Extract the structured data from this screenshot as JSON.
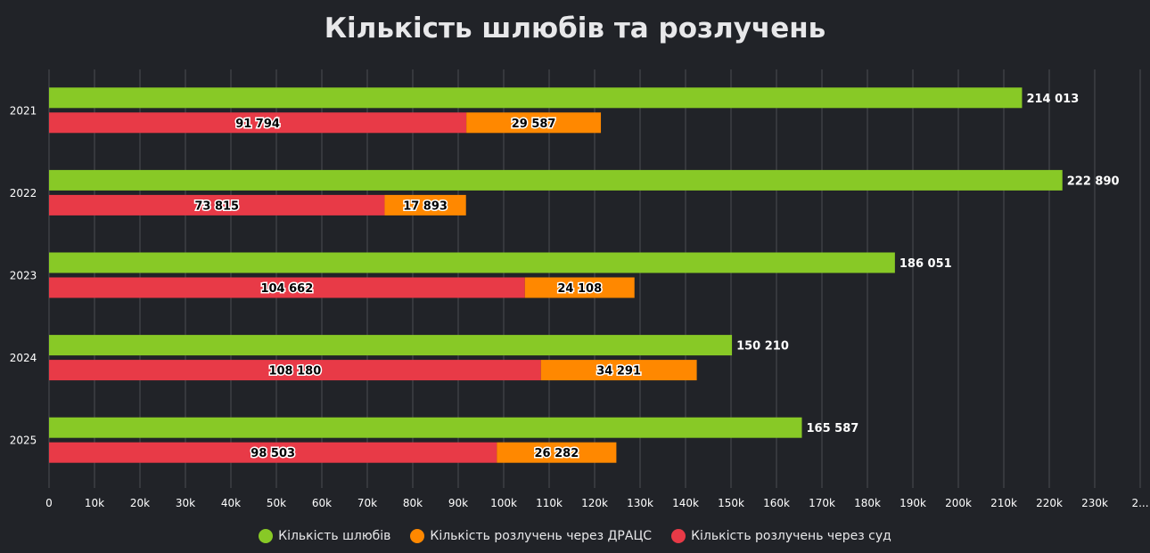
{
  "chart_data": {
    "type": "bar",
    "orientation": "horizontal",
    "title": "Кількість шлюбів та розлучень",
    "categories": [
      "2021",
      "2022",
      "2023",
      "2024",
      "2025"
    ],
    "series": [
      {
        "name": "Кількість шлюбів",
        "color": "#88c926",
        "stack": "marriages",
        "values": [
          214013,
          222890,
          186051,
          150210,
          165587
        ],
        "labels": [
          "214 013",
          "222 890",
          "186 051",
          "150 210",
          "165 587"
        ]
      },
      {
        "name": "Кількість розлучень через суд",
        "color": "#e83a47",
        "stack": "divorces",
        "values": [
          91794,
          73815,
          104662,
          108180,
          98503
        ],
        "labels": [
          "91 794",
          "73 815",
          "104 662",
          "108 180",
          "98 503"
        ]
      },
      {
        "name": "Кількість розлучень через ДРАЦС",
        "color": "#ff8800",
        "stack": "divorces",
        "values": [
          29587,
          17893,
          24108,
          34291,
          26282
        ],
        "labels": [
          "29 587",
          "17 893",
          "24 108",
          "34 291",
          "26 282"
        ]
      }
    ],
    "xlim": [
      0,
      240000
    ],
    "xticks": [
      "0",
      "10k",
      "20k",
      "30k",
      "40k",
      "50k",
      "60k",
      "70k",
      "80k",
      "90k",
      "100k",
      "110k",
      "120k",
      "130k",
      "140k",
      "150k",
      "160k",
      "170k",
      "180k",
      "190k",
      "200k",
      "210k",
      "220k",
      "230k",
      "2..."
    ],
    "grid": true,
    "legend_position": "bottom",
    "legend": [
      {
        "name": "Кількість шлюбів",
        "color": "#88c926"
      },
      {
        "name": "Кількість розлучень через ДРАЦС",
        "color": "#ff8800"
      },
      {
        "name": "Кількість розлучень через суд",
        "color": "#e83a47"
      }
    ]
  }
}
